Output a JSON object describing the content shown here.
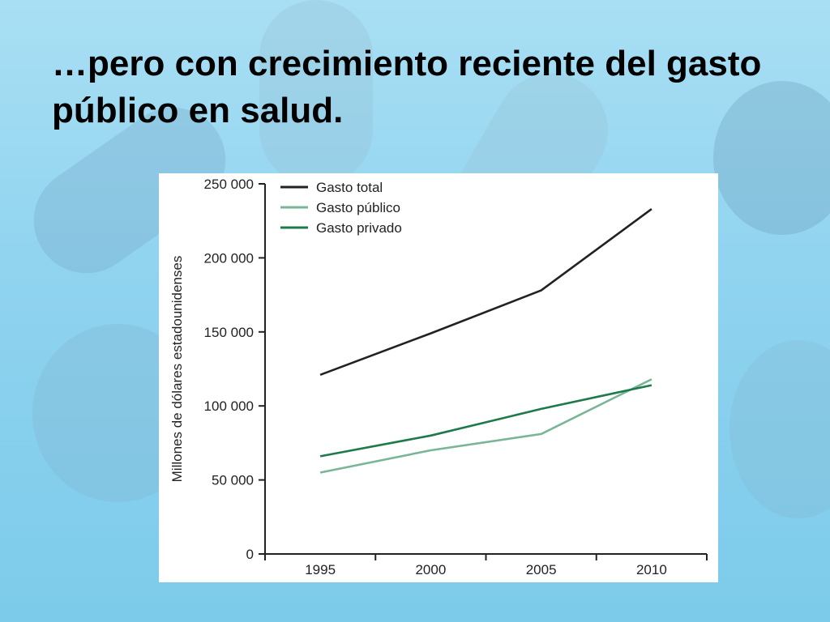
{
  "slide": {
    "title": "…pero con crecimiento reciente del gasto público en salud."
  },
  "chart_data": {
    "type": "line",
    "x": [
      1995,
      2000,
      2005,
      2010
    ],
    "x_tick_labels": [
      "1995",
      "2000",
      "2005",
      "2010"
    ],
    "y_tick_values": [
      0,
      50000,
      100000,
      150000,
      200000,
      250000
    ],
    "y_tick_labels": [
      "0",
      "50 000",
      "100 000",
      "150 000",
      "200 000",
      "250 000"
    ],
    "ylim": [
      0,
      250000
    ],
    "ylabel": "Millones de dólares estadounidenses",
    "xlabel": "",
    "title": "",
    "grid": false,
    "legend_position": "top-left",
    "series": [
      {
        "name": "Gasto total",
        "color": "#222222",
        "values": [
          121000,
          149000,
          178000,
          233000
        ]
      },
      {
        "name": "Gasto público",
        "color": "#79b597",
        "values": [
          55000,
          70000,
          81000,
          118000
        ]
      },
      {
        "name": "Gasto privado",
        "color": "#1f7a4a",
        "values": [
          66000,
          80000,
          98000,
          114000
        ]
      }
    ]
  }
}
